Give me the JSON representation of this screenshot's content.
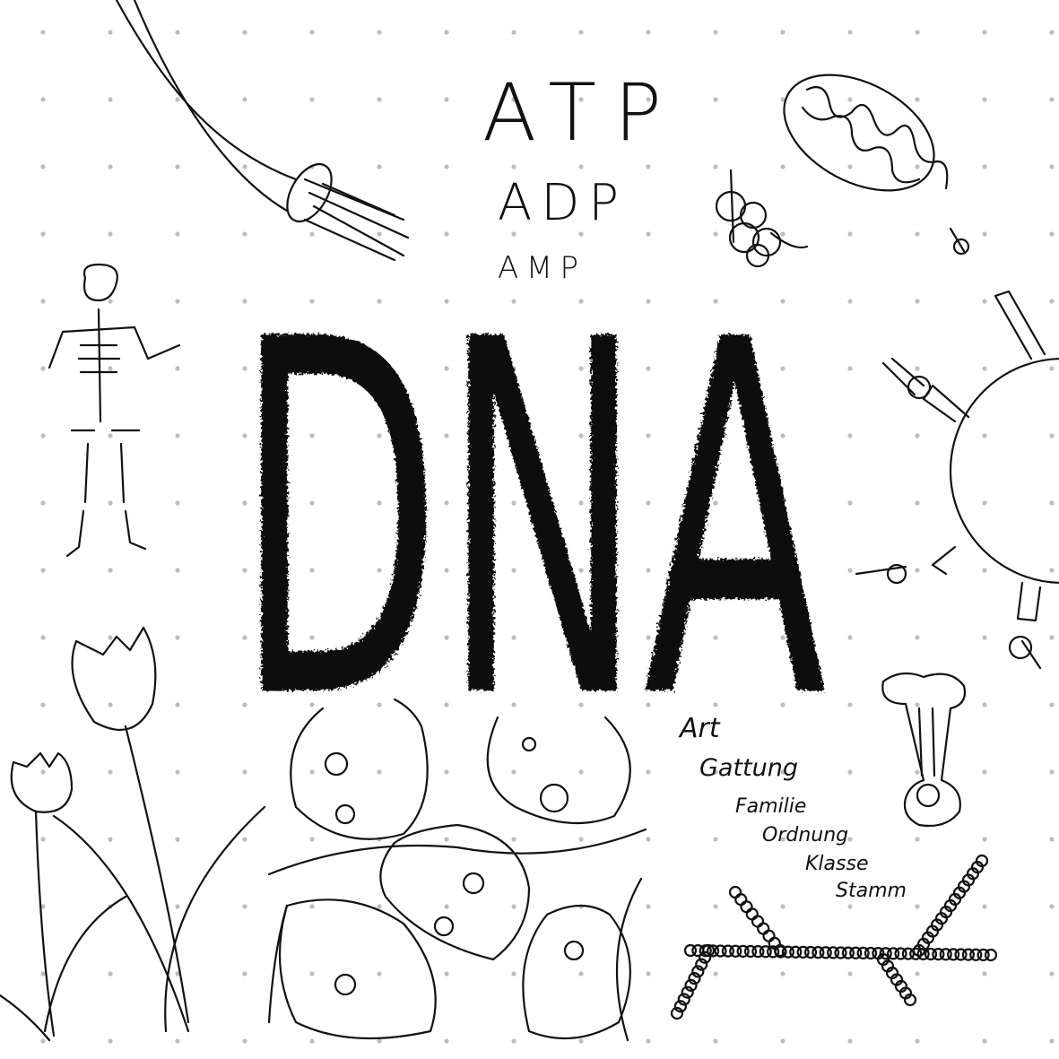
{
  "headings": {
    "atp": "ATP",
    "adp": "ADP",
    "amp": "AMP",
    "dna": "DNA"
  },
  "taxonomy": [
    "Art",
    "Gattung",
    "Familie",
    "Ordnung",
    "Klasse",
    "Stamm"
  ]
}
